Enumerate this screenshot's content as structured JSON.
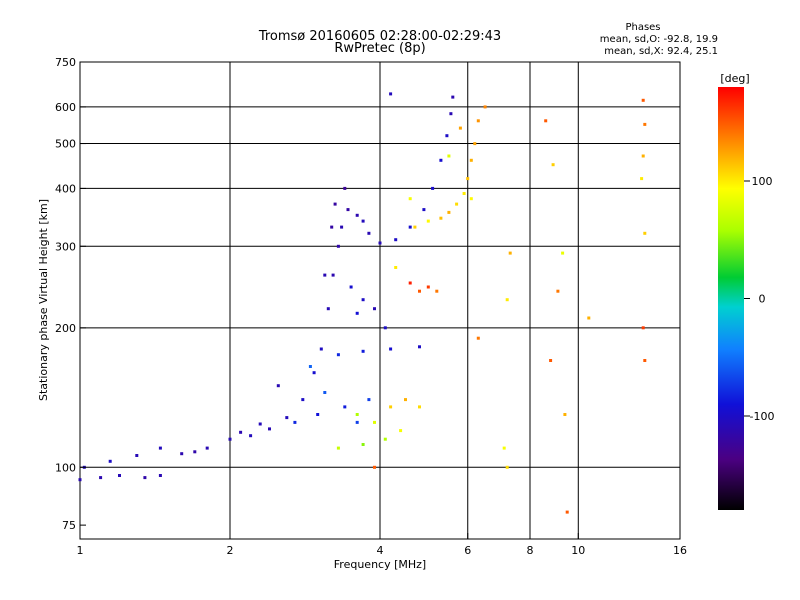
{
  "chart_data": {
    "type": "scatter",
    "title": "Tromsø 20160605 02:28:00-02:29:43",
    "subtitle": "RwPretec (8p)",
    "xlabel": "Frequency [MHz]",
    "ylabel": "Stationary phase Virtual Height [km]",
    "x_scale": "log",
    "y_scale": "log",
    "xlim": [
      1,
      16
    ],
    "ylim": [
      70,
      750
    ],
    "x_ticks": [
      1,
      2,
      4,
      6,
      8,
      10,
      16
    ],
    "y_ticks": [
      75,
      100,
      200,
      300,
      400,
      500,
      600,
      750
    ],
    "grid_x": [
      2,
      4,
      6,
      8,
      10
    ],
    "grid_y": [
      100,
      200,
      300,
      400,
      500,
      600
    ],
    "grid": true,
    "phase_stats": {
      "title": "Phases",
      "line_o": "mean, sd,O: -92.8, 19.9",
      "line_x": "mean, sd,X:  92.4, 25.1"
    },
    "colorbar": {
      "label": "[deg]",
      "range": [
        -180,
        180
      ],
      "ticks": [
        100,
        0,
        -100
      ]
    },
    "series": [
      {
        "points": [
          [
            1.0,
            94,
            -110
          ],
          [
            1.1,
            95,
            -112
          ],
          [
            1.2,
            96,
            -108
          ],
          [
            1.35,
            95,
            -115
          ],
          [
            1.45,
            96,
            -110
          ],
          [
            1.02,
            100,
            -105
          ],
          [
            1.15,
            103,
            -100
          ],
          [
            1.3,
            106,
            -108
          ],
          [
            1.45,
            110,
            -105
          ],
          [
            1.6,
            107,
            -112
          ],
          [
            1.8,
            110,
            -110
          ],
          [
            2.0,
            115,
            -108
          ],
          [
            2.2,
            117,
            -105
          ],
          [
            2.4,
            121,
            -110
          ],
          [
            2.6,
            128,
            -106
          ],
          [
            2.8,
            140,
            -100
          ],
          [
            2.95,
            160,
            -95
          ],
          [
            3.05,
            180,
            -102
          ],
          [
            3.15,
            220,
            -108
          ],
          [
            3.22,
            260,
            -112
          ],
          [
            3.3,
            300,
            -115
          ],
          [
            3.35,
            330,
            -110
          ],
          [
            3.25,
            370,
            -120
          ],
          [
            3.45,
            360,
            -118
          ],
          [
            3.6,
            350,
            -112
          ],
          [
            3.7,
            340,
            -105
          ],
          [
            3.8,
            320,
            -110
          ],
          [
            4.0,
            305,
            -108
          ],
          [
            4.3,
            310,
            -100
          ],
          [
            4.6,
            330,
            -95
          ],
          [
            4.9,
            360,
            -100
          ],
          [
            5.1,
            400,
            -98
          ],
          [
            5.3,
            460,
            -95
          ],
          [
            5.45,
            520,
            -100
          ],
          [
            5.55,
            580,
            -110
          ],
          [
            5.6,
            630,
            -112
          ],
          [
            4.2,
            640,
            -105
          ],
          [
            3.4,
            400,
            -125
          ],
          [
            3.2,
            330,
            -118
          ],
          [
            3.1,
            260,
            -110
          ],
          [
            3.5,
            245,
            -95
          ],
          [
            3.7,
            230,
            -100
          ],
          [
            3.9,
            220,
            -110
          ],
          [
            3.6,
            215,
            -92
          ],
          [
            4.1,
            200,
            -100
          ],
          [
            3.3,
            175,
            -80
          ],
          [
            3.7,
            178,
            -85
          ],
          [
            4.2,
            180,
            -95
          ],
          [
            4.8,
            182,
            -100
          ],
          [
            2.7,
            125,
            -80
          ],
          [
            3.0,
            130,
            -90
          ],
          [
            3.4,
            135,
            -85
          ],
          [
            3.8,
            140,
            -70
          ],
          [
            2.5,
            150,
            -110
          ],
          [
            2.9,
            165,
            -55
          ],
          [
            3.1,
            145,
            -60
          ],
          [
            3.6,
            125,
            -70
          ],
          [
            1.7,
            108,
            -115
          ],
          [
            2.1,
            119,
            -112
          ],
          [
            2.3,
            124,
            -107
          ]
        ]
      },
      {
        "points": [
          [
            3.6,
            130,
            60
          ],
          [
            3.9,
            125,
            80
          ],
          [
            4.2,
            135,
            110
          ],
          [
            4.5,
            140,
            120
          ],
          [
            4.8,
            135,
            105
          ],
          [
            3.3,
            110,
            70
          ],
          [
            3.7,
            112,
            50
          ],
          [
            3.9,
            100,
            150
          ],
          [
            4.1,
            115,
            60
          ],
          [
            4.4,
            120,
            90
          ],
          [
            4.6,
            250,
            170
          ],
          [
            4.8,
            240,
            150
          ],
          [
            5.0,
            245,
            160
          ],
          [
            5.2,
            240,
            140
          ],
          [
            4.3,
            270,
            100
          ],
          [
            4.7,
            330,
            110
          ],
          [
            5.0,
            340,
            95
          ],
          [
            5.3,
            345,
            115
          ],
          [
            5.5,
            355,
            120
          ],
          [
            5.7,
            370,
            105
          ],
          [
            5.9,
            390,
            100
          ],
          [
            6.0,
            420,
            115
          ],
          [
            6.1,
            460,
            120
          ],
          [
            6.2,
            500,
            125
          ],
          [
            6.3,
            560,
            130
          ],
          [
            6.5,
            600,
            135
          ],
          [
            5.8,
            540,
            125
          ],
          [
            6.1,
            380,
            95
          ],
          [
            5.5,
            470,
            80
          ],
          [
            4.6,
            380,
            90
          ],
          [
            8.6,
            560,
            150
          ],
          [
            8.9,
            450,
            110
          ],
          [
            9.3,
            290,
            85
          ],
          [
            9.1,
            240,
            140
          ],
          [
            8.8,
            170,
            150
          ],
          [
            9.4,
            130,
            120
          ],
          [
            7.3,
            290,
            120
          ],
          [
            7.2,
            230,
            100
          ],
          [
            7.1,
            110,
            90
          ],
          [
            7.2,
            100,
            105
          ],
          [
            10.5,
            210,
            120
          ],
          [
            13.5,
            620,
            150
          ],
          [
            13.6,
            550,
            140
          ],
          [
            13.5,
            470,
            120
          ],
          [
            13.4,
            420,
            100
          ],
          [
            13.6,
            320,
            110
          ],
          [
            13.5,
            200,
            160
          ],
          [
            13.6,
            170,
            150
          ],
          [
            9.5,
            80,
            150
          ],
          [
            6.3,
            190,
            140
          ]
        ]
      }
    ]
  }
}
